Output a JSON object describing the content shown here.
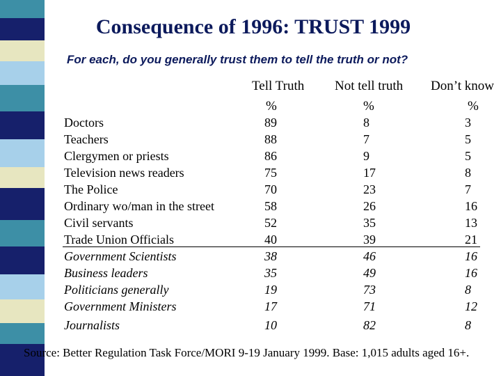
{
  "title": "Consequence of 1996: TRUST 1999",
  "subtitle": "For each, do you generally trust them to tell the truth or not?",
  "columns": {
    "tell_truth": "Tell Truth",
    "not_tell_truth": "Not tell truth",
    "dont_know": "Don’t know",
    "unit": "%"
  },
  "rows": [
    {
      "label": "Doctors",
      "tell": "89",
      "not": "8",
      "dk": "3"
    },
    {
      "label": "Teachers",
      "tell": "88",
      "not": "7",
      "dk": "5"
    },
    {
      "label": "Clergymen or priests",
      "tell": "86",
      "not": "9",
      "dk": "5"
    },
    {
      "label": "Television news readers",
      "tell": "75",
      "not": "17",
      "dk": "8"
    },
    {
      "label": "The Police",
      "tell": "70",
      "not": "23",
      "dk": "7"
    },
    {
      "label": "Ordinary wo/man in the street",
      "tell": "58",
      "not": "26",
      "dk": "16"
    },
    {
      "label": "Civil servants",
      "tell": "52",
      "not": "35",
      "dk": "13"
    },
    {
      "label": "Trade Union Officials",
      "tell": "40",
      "not": "39",
      "dk": "21"
    },
    {
      "label": "Government Scientists",
      "tell": "38",
      "not": "46",
      "dk": "16"
    },
    {
      "label": "Business leaders",
      "tell": "35",
      "not": "49",
      "dk": "16"
    },
    {
      "label": "Politicians generally",
      "tell": "19",
      "not": "73",
      "dk": "8"
    },
    {
      "label": "Government Ministers",
      "tell": "17",
      "not": "71",
      "dk": "12"
    },
    {
      "label": "Journalists",
      "tell": "10",
      "not": "82",
      "dk": "8"
    }
  ],
  "source": "Source: Better Regulation Task Force/MORI 9-19 January 1999. Base: 1,015 adults aged 16+.",
  "colors": {
    "navy": "#16206b",
    "teal": "#3d8fa6",
    "light_blue": "#a7d0ea",
    "cream": "#e7e6c0",
    "title": "#0c1a5c"
  }
}
